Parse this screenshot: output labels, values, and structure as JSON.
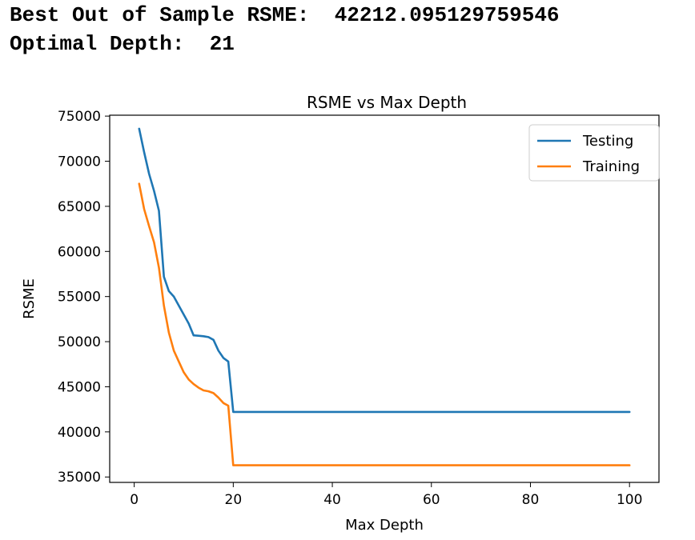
{
  "output": {
    "line1_label": "Best Out of Sample RSME:",
    "line1_value": "42212.095129759546",
    "line2_label": "Optimal Depth:",
    "line2_value": "21"
  },
  "colors": {
    "testing": "#1f77b4",
    "training": "#ff7f0e",
    "axis": "#000000"
  },
  "chart_data": {
    "type": "line",
    "title": "RSME vs Max Depth",
    "xlabel": "Max Depth",
    "ylabel": "RSME",
    "xlim": [
      -4.95,
      105.95
    ],
    "ylim": [
      34400,
      75100
    ],
    "xticks": [
      0,
      20,
      40,
      60,
      80,
      100
    ],
    "yticks": [
      35000,
      40000,
      45000,
      50000,
      55000,
      60000,
      65000,
      70000,
      75000
    ],
    "grid": false,
    "legend_position": "top-right",
    "series": [
      {
        "name": "Testing",
        "color": "#1f77b4",
        "x": [
          1,
          2,
          3,
          4,
          5,
          6,
          7,
          8,
          9,
          10,
          11,
          12,
          13,
          14,
          15,
          16,
          17,
          18,
          19,
          20,
          21,
          100
        ],
        "y": [
          73600,
          71000,
          68600,
          66700,
          64500,
          57200,
          55600,
          55000,
          54000,
          53000,
          52000,
          50700,
          50650,
          50600,
          50500,
          50200,
          49000,
          48200,
          47800,
          42212,
          42212,
          42212
        ]
      },
      {
        "name": "Training",
        "color": "#ff7f0e",
        "x": [
          1,
          2,
          3,
          4,
          5,
          6,
          7,
          8,
          9,
          10,
          11,
          12,
          13,
          14,
          15,
          16,
          17,
          18,
          19,
          20,
          21,
          100
        ],
        "y": [
          67500,
          64700,
          62800,
          61000,
          58200,
          54000,
          51000,
          49000,
          47800,
          46600,
          45800,
          45300,
          44900,
          44600,
          44500,
          44300,
          43800,
          43200,
          42900,
          36300,
          36300,
          36300
        ]
      }
    ]
  }
}
